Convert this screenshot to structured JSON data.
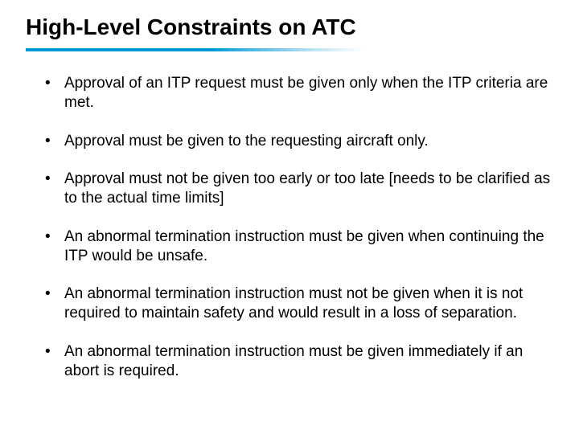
{
  "title": "High-Level Constraints on ATC",
  "rule_gradient_start": "#0099d8",
  "rule_gradient_end": "#ffffff",
  "bullets": [
    "Approval of an ITP request must be given only when the ITP criteria are met.",
    "Approval must be given to the requesting aircraft only.",
    "Approval must not be given too early or too late [needs to be clarified as to the actual time limits]",
    "An abnormal termination instruction must be given when continuing the ITP would be unsafe.",
    "An abnormal termination instruction must not be given when it is not required to maintain safety and would result in a loss of separation.",
    "An abnormal termination instruction must be given immediately if an abort is required."
  ],
  "title_fontsize": 28,
  "body_fontsize": 19,
  "text_color": "#000000",
  "background_color": "#ffffff"
}
